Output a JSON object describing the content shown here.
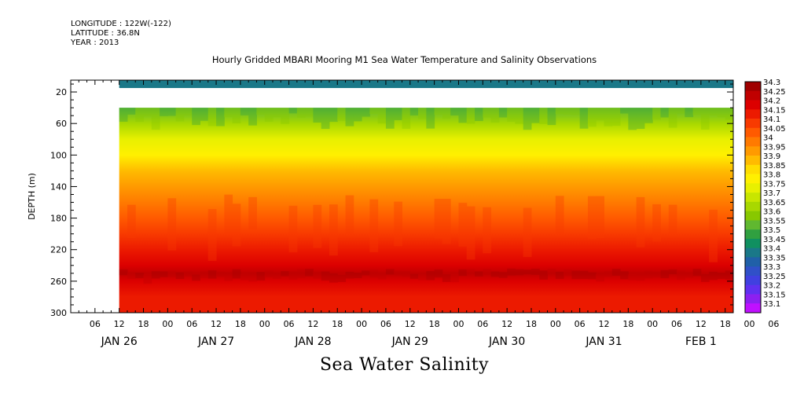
{
  "header": {
    "longitude": "LONGITUDE : 122W(-122)",
    "latitude": "LATITUDE : 36.8N",
    "year": "YEAR : 2013"
  },
  "title": "Hourly Gridded MBARI Mooring M1 Sea Water Temperature and Salinity Observations",
  "footer_title": "Sea Water Salinity",
  "chart_data": {
    "type": "heatmap",
    "ylabel": "DEPTH (m)",
    "xlabel": "",
    "y_axis": {
      "range": [
        300,
        5
      ],
      "inverted": true,
      "ticks": [
        20,
        60,
        100,
        140,
        180,
        220,
        260,
        300
      ]
    },
    "x_axis": {
      "range_hours": "Jan 26 00:00 to Feb 1 20:00, 2013",
      "hour_ticks": [
        "06",
        "12",
        "18",
        "00",
        "06",
        "12",
        "18",
        "00",
        "06",
        "12",
        "18",
        "00",
        "06",
        "12",
        "18",
        "00",
        "06",
        "12",
        "18",
        "00",
        "06",
        "12",
        "18",
        "00",
        "06",
        "12",
        "18",
        "00",
        "06",
        "12",
        "18"
      ],
      "day_labels": [
        "JAN 26",
        "JAN 27",
        "JAN 28",
        "JAN 29",
        "JAN 30",
        "JAN 31",
        "FEB  1"
      ]
    },
    "data_extent": {
      "start": "Jan 26 12:00",
      "end": "Feb 1 20:00",
      "surface_band_depth": [
        5,
        15
      ],
      "missing_depth": [
        15,
        40
      ],
      "gridded_depth": [
        40,
        300
      ]
    },
    "depth_profile": [
      {
        "depth": 40,
        "salinity": 33.55
      },
      {
        "depth": 60,
        "salinity": 33.65
      },
      {
        "depth": 80,
        "salinity": 33.75
      },
      {
        "depth": 100,
        "salinity": 33.83
      },
      {
        "depth": 120,
        "salinity": 33.9
      },
      {
        "depth": 140,
        "salinity": 33.96
      },
      {
        "depth": 160,
        "salinity": 34.02
      },
      {
        "depth": 180,
        "salinity": 34.05
      },
      {
        "depth": 200,
        "salinity": 34.1
      },
      {
        "depth": 220,
        "salinity": 34.15
      },
      {
        "depth": 240,
        "salinity": 34.2
      },
      {
        "depth": 250,
        "salinity": 34.25
      },
      {
        "depth": 260,
        "salinity": 34.22
      },
      {
        "depth": 280,
        "salinity": 34.18
      },
      {
        "depth": 300,
        "salinity": 34.15
      }
    ],
    "surface_salinity": 33.42,
    "colorbar": {
      "levels": [
        "34.3",
        "34.25",
        "34.2",
        "34.15",
        "34.1",
        "34.05",
        "34",
        "33.95",
        "33.9",
        "33.85",
        "33.8",
        "33.75",
        "33.7",
        "33.65",
        "33.6",
        "33.55",
        "33.5",
        "33.45",
        "33.4",
        "33.35",
        "33.3",
        "33.25",
        "33.2",
        "33.15",
        "33.1"
      ],
      "colors": [
        "#a00000",
        "#c00000",
        "#dc0000",
        "#ec1a00",
        "#f83a00",
        "#ff5a00",
        "#ff7a00",
        "#ff9a00",
        "#ffbb00",
        "#ffdd00",
        "#fff000",
        "#e8f000",
        "#c8e600",
        "#a8d800",
        "#88c800",
        "#60b830",
        "#30a040",
        "#109060",
        "#1a7888",
        "#2060a8",
        "#3050c8",
        "#4040e0",
        "#6030f0",
        "#8c20f0",
        "#c010ff"
      ]
    }
  }
}
